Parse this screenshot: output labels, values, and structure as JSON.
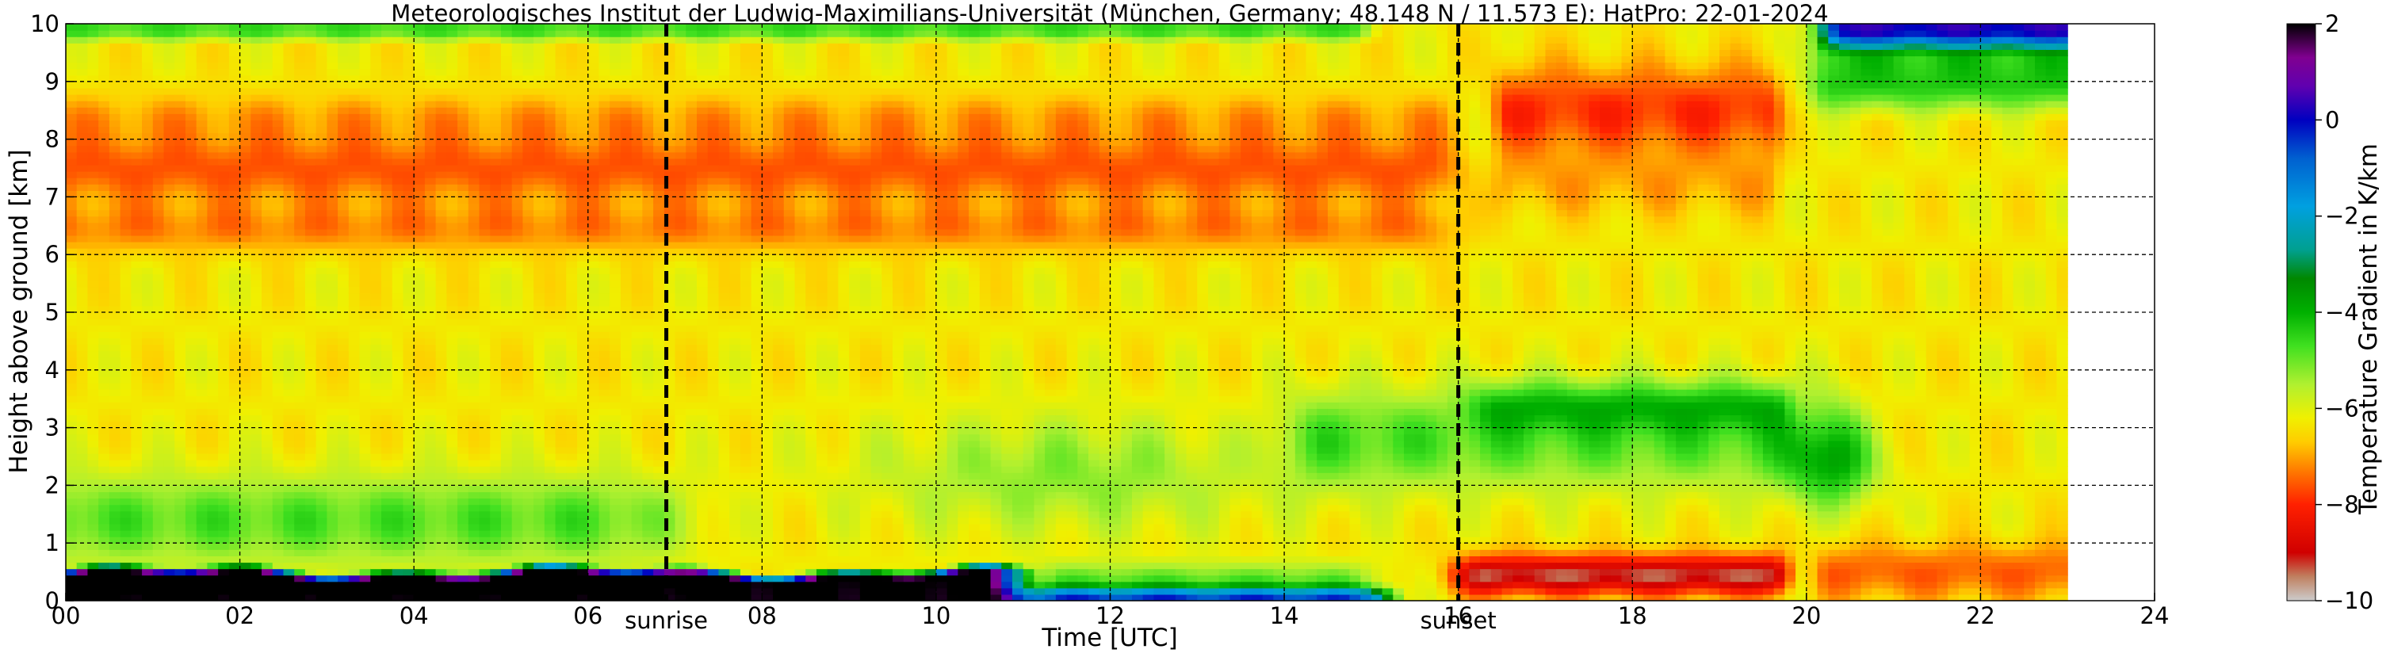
{
  "chart_data": {
    "type": "heatmap",
    "title": "Meteorologisches Institut der Ludwig-Maximilians-Universität (München, Germany; 48.148 N / 11.573 E):    HatPro: 22-01-2024",
    "xlabel": "Time [UTC]",
    "ylabel": "Height above ground [km]",
    "xlim": [
      0,
      24
    ],
    "ylim": [
      0,
      10
    ],
    "data_x_range": [
      0,
      23
    ],
    "x_ticks": [
      0,
      2,
      4,
      6,
      8,
      10,
      12,
      14,
      16,
      18,
      20,
      22,
      24
    ],
    "x_tick_labels": [
      "00",
      "02",
      "04",
      "06",
      "08",
      "10",
      "12",
      "14",
      "16",
      "18",
      "20",
      "22",
      "24"
    ],
    "y_ticks": [
      0,
      1,
      2,
      3,
      4,
      5,
      6,
      7,
      8,
      9,
      10
    ],
    "y_tick_labels": [
      "0",
      "1",
      "2",
      "3",
      "4",
      "5",
      "6",
      "7",
      "8",
      "9",
      "10"
    ],
    "grid": true,
    "colorbar": {
      "label": "Temperature Gradient in K/km",
      "range": [
        -10,
        2
      ],
      "ticks": [
        2,
        0,
        -2,
        -4,
        -6,
        -8,
        -10
      ],
      "tick_labels": [
        "2",
        "0",
        "−2",
        "−4",
        "−6",
        "−8",
        "−10"
      ],
      "stops": [
        {
          "value": -10,
          "color": "#cccccc"
        },
        {
          "value": -9.5,
          "color": "#c08060"
        },
        {
          "value": -9,
          "color": "#d00000"
        },
        {
          "value": -8,
          "color": "#ff2000"
        },
        {
          "value": -7.3,
          "color": "#ff7a00"
        },
        {
          "value": -6.7,
          "color": "#ffcc00"
        },
        {
          "value": -6.2,
          "color": "#f0f000"
        },
        {
          "value": -5.5,
          "color": "#b0f030"
        },
        {
          "value": -4.7,
          "color": "#40e020"
        },
        {
          "value": -4,
          "color": "#00b000"
        },
        {
          "value": -3.3,
          "color": "#008800"
        },
        {
          "value": -2.7,
          "color": "#00a090"
        },
        {
          "value": -1.8,
          "color": "#00a0e0"
        },
        {
          "value": -0.8,
          "color": "#0060d0"
        },
        {
          "value": 0,
          "color": "#0000c0"
        },
        {
          "value": 0.7,
          "color": "#6000b0"
        },
        {
          "value": 1.3,
          "color": "#800090"
        },
        {
          "value": 2,
          "color": "#000000"
        }
      ]
    },
    "annotations": [
      {
        "label": "sunrise",
        "x": 6.9
      },
      {
        "label": "sunset",
        "x": 16.0
      }
    ],
    "field_features": [
      {
        "name": "upper orange band",
        "x_range": [
          0,
          15.8
        ],
        "y_range": [
          6.0,
          8.3
        ],
        "value": -7.6
      },
      {
        "name": "orange band after sunset",
        "x_range": [
          16.5,
          19.7
        ],
        "y_range": [
          7.6,
          9.2
        ],
        "value": -7.8
      },
      {
        "name": "green top band",
        "x_range": [
          0,
          15
        ],
        "y_range": [
          9.7,
          10
        ],
        "value": -5.0
      },
      {
        "name": "blue top after 20 UTC",
        "x_range": [
          20,
          23
        ],
        "y_range": [
          9.5,
          10
        ],
        "value": -1.5
      },
      {
        "name": "low green layer",
        "x_range": [
          0,
          6
        ],
        "y_range": [
          0.8,
          2.3
        ],
        "value": -5.0
      },
      {
        "name": "green layer afternoon",
        "x_range": [
          14,
          20.5
        ],
        "y_range": [
          2.0,
          3.6
        ],
        "value": -5.2
      },
      {
        "name": "surface inversion",
        "x_range": [
          0,
          11
        ],
        "y_range": [
          0,
          0.6
        ],
        "value": 2.0
      },
      {
        "name": "red superadiabatic layer",
        "x_range": [
          16,
          19.7
        ],
        "y_range": [
          0.1,
          0.8
        ],
        "value": -9.0
      }
    ]
  }
}
